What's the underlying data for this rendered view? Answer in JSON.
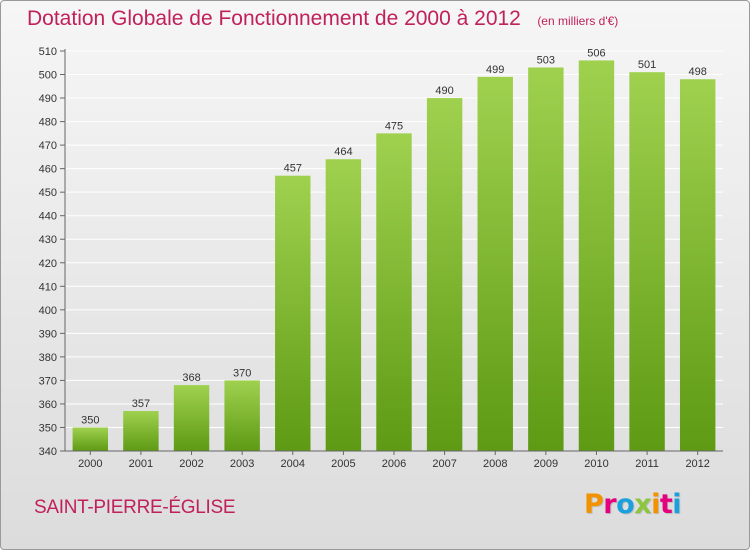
{
  "header": {
    "title": "Dotation Globale de Fonctionnement de 2000 à 2012",
    "unit": "(en milliers d'€)"
  },
  "footer": {
    "commune": "SAINT-PIERRE-ÉGLISE",
    "brand": "Proxiti",
    "brand_letters": [
      "P",
      "r",
      "o",
      "x",
      "i",
      "t",
      "i"
    ],
    "brand_colors": [
      "#f39200",
      "#e5007e",
      "#1aa0dc",
      "#8cc63f",
      "#f39200",
      "#e5007e",
      "#1aa0dc"
    ]
  },
  "chart_data": {
    "type": "bar",
    "title": "Dotation Globale de Fonctionnement de 2000 à 2012",
    "xlabel": "",
    "ylabel": "",
    "categories": [
      "2000",
      "2001",
      "2002",
      "2003",
      "2004",
      "2005",
      "2006",
      "2007",
      "2008",
      "2009",
      "2010",
      "2011",
      "2012"
    ],
    "values": [
      350,
      357,
      368,
      370,
      457,
      464,
      475,
      490,
      499,
      503,
      506,
      501,
      498
    ],
    "ylim": [
      340,
      510
    ],
    "yticks": [
      340,
      350,
      360,
      370,
      380,
      390,
      400,
      410,
      420,
      430,
      440,
      450,
      460,
      470,
      480,
      490,
      500,
      510
    ],
    "grid": true,
    "colors": {
      "bar_light": "#9fd14f",
      "bar_dark": "#5e9a14",
      "grid": "#ffffff"
    }
  }
}
